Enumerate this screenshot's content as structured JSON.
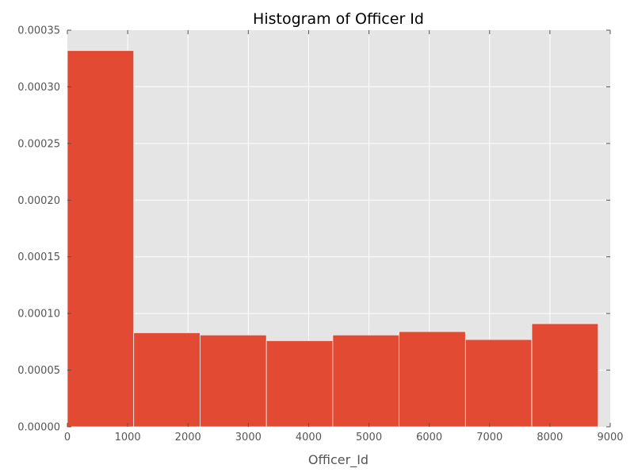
{
  "chart_data": {
    "type": "bar",
    "title": "Histogram of Officer Id",
    "xlabel": "Officer_Id",
    "ylabel": "",
    "xlim": [
      0,
      9000
    ],
    "ylim": [
      0,
      0.00035
    ],
    "xticks": [
      0,
      1000,
      2000,
      3000,
      4000,
      5000,
      6000,
      7000,
      8000,
      9000
    ],
    "xtick_labels": [
      "0",
      "1000",
      "2000",
      "3000",
      "4000",
      "5000",
      "6000",
      "7000",
      "8000",
      "9000"
    ],
    "yticks": [
      0,
      5e-05,
      0.0001,
      0.00015,
      0.0002,
      0.00025,
      0.0003,
      0.00035
    ],
    "ytick_labels": [
      "0.00000",
      "0.00005",
      "0.00010",
      "0.00015",
      "0.00020",
      "0.00025",
      "0.00030",
      "0.00035"
    ],
    "bins": [
      {
        "start": 0,
        "end": 1100,
        "value": 0.000332
      },
      {
        "start": 1100,
        "end": 2200,
        "value": 8.3e-05
      },
      {
        "start": 2200,
        "end": 3300,
        "value": 8.1e-05
      },
      {
        "start": 3300,
        "end": 4400,
        "value": 7.6e-05
      },
      {
        "start": 4400,
        "end": 5500,
        "value": 8.1e-05
      },
      {
        "start": 5500,
        "end": 6600,
        "value": 8.4e-05
      },
      {
        "start": 6600,
        "end": 7700,
        "value": 7.7e-05
      },
      {
        "start": 7700,
        "end": 8800,
        "value": 9.1e-05
      }
    ],
    "grid": true,
    "colors": {
      "bar": "#E24A33",
      "background": "#E5E5E5",
      "grid": "#FFFFFF"
    }
  }
}
